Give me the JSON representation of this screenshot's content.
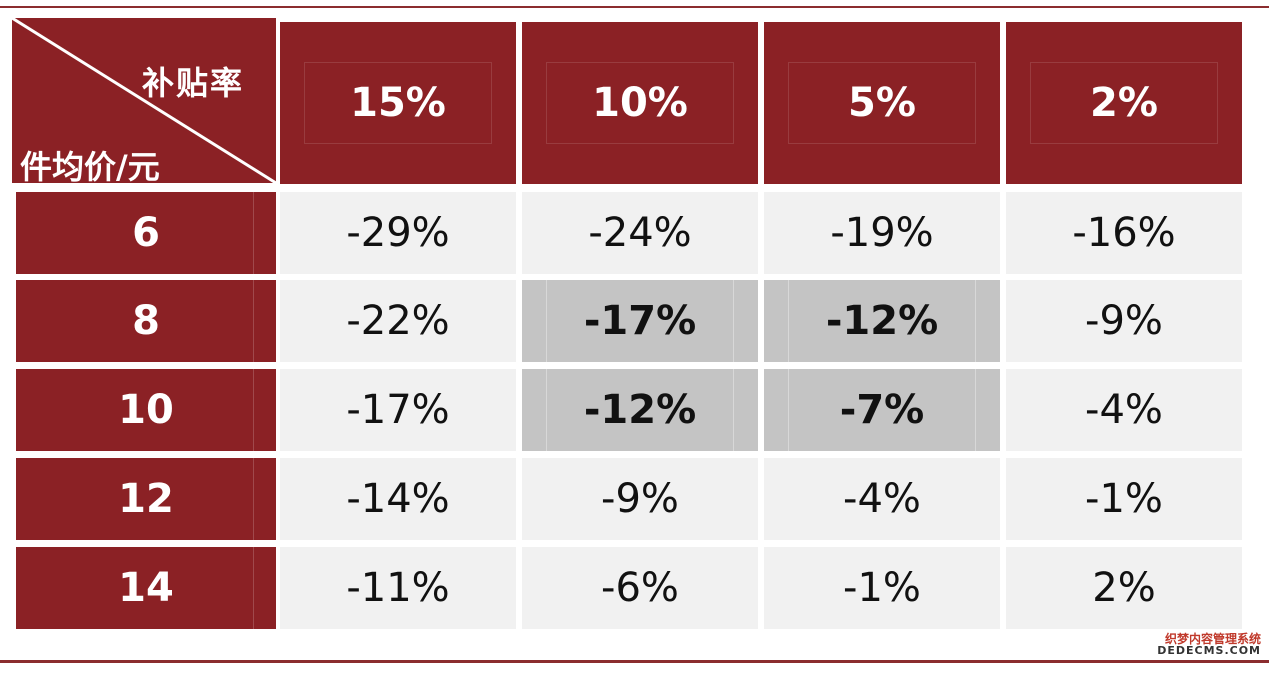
{
  "table": {
    "corner_top_label": "补贴率",
    "corner_bottom_label": "件均价/元",
    "columns": [
      "15%",
      "10%",
      "5%",
      "2%"
    ],
    "rows": [
      {
        "label": "6",
        "values": [
          "-29%",
          "-24%",
          "-19%",
          "-16%"
        ],
        "highlight": [
          false,
          false,
          false,
          false
        ]
      },
      {
        "label": "8",
        "values": [
          "-22%",
          "-17%",
          "-12%",
          "-9%"
        ],
        "highlight": [
          false,
          true,
          true,
          false
        ]
      },
      {
        "label": "10",
        "values": [
          "-17%",
          "-12%",
          "-7%",
          "-4%"
        ],
        "highlight": [
          false,
          true,
          true,
          false
        ]
      },
      {
        "label": "12",
        "values": [
          "-14%",
          "-9%",
          "-4%",
          "-1%"
        ],
        "highlight": [
          false,
          false,
          false,
          false
        ]
      },
      {
        "label": "14",
        "values": [
          "-11%",
          "-6%",
          "-1%",
          "2%"
        ],
        "highlight": [
          false,
          false,
          false,
          false
        ]
      }
    ]
  },
  "colors": {
    "header_bg": "#8b2125",
    "cell_bg": "#f1f1f1",
    "highlight_bg": "#c4c4c4",
    "rule": "#8b2d2f"
  },
  "watermark": {
    "line1": "织梦内容管理系统",
    "line2": "DEDECMS.COM"
  }
}
